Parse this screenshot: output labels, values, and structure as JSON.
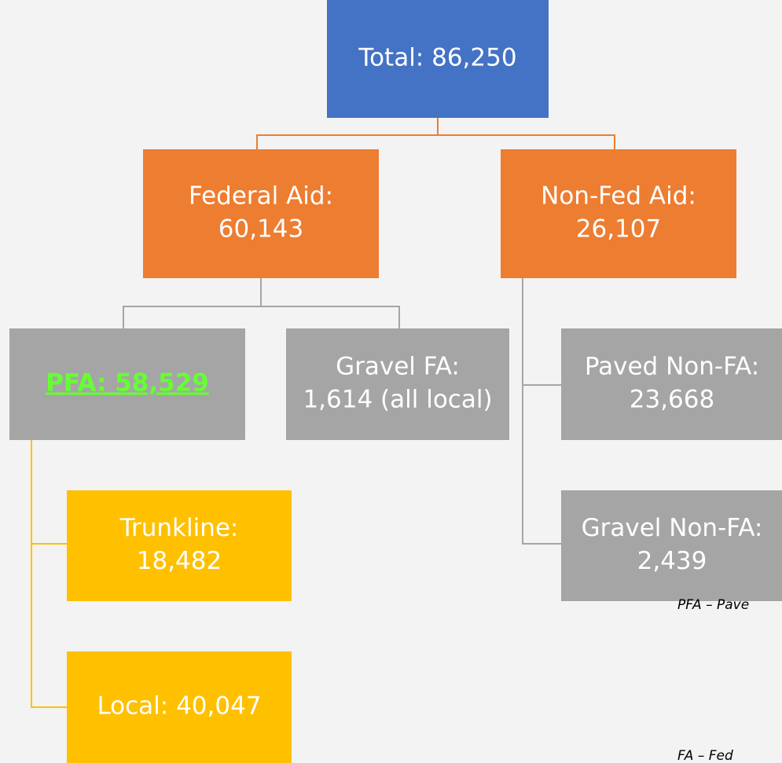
{
  "nodes": [
    {
      "lines": [
        "Total: 86,250"
      ]
    },
    {
      "lines": [
        "Federal Aid:",
        "60,143"
      ]
    },
    {
      "lines": [
        "Non-Fed Aid:",
        "26,107"
      ]
    },
    {
      "lines": [
        "PFA: 58,529"
      ]
    },
    {
      "lines": [
        "Gravel FA:",
        "1,614 (all local)"
      ]
    },
    {
      "lines": [
        "Paved Non-FA:",
        "23,668"
      ]
    },
    {
      "lines": [
        "Gravel Non-FA:",
        "2,439"
      ]
    },
    {
      "lines": [
        "Trunkline:",
        "18,482"
      ]
    },
    {
      "lines": [
        "Local: 40,047"
      ]
    }
  ],
  "legend": [
    "PFA – Pave",
    "FA – Fed"
  ]
}
